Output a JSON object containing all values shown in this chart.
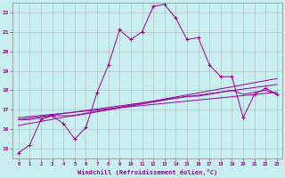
{
  "xlabel": "Windchill (Refroidissement éolien,°C)",
  "background_color": "#c8eef0",
  "grid_color": "#aaaaaa",
  "line_color": "#990099",
  "xlim": [
    -0.5,
    23.5
  ],
  "ylim": [
    14.5,
    22.5
  ],
  "ytick_values": [
    15,
    16,
    17,
    18,
    19,
    20,
    21,
    22
  ],
  "series1_x": [
    0,
    1,
    2,
    3,
    4,
    5,
    6,
    7,
    8,
    9,
    10,
    11,
    12,
    13,
    14,
    15,
    16,
    17,
    18,
    19,
    20,
    21,
    22,
    23
  ],
  "series1_y": [
    14.8,
    15.2,
    16.5,
    16.7,
    16.3,
    15.5,
    16.1,
    17.9,
    19.3,
    21.1,
    20.6,
    21.0,
    22.3,
    22.4,
    21.7,
    20.6,
    20.7,
    19.3,
    18.7,
    18.7,
    16.6,
    17.8,
    18.1,
    17.8
  ],
  "series2_x": [
    0,
    1,
    2,
    3,
    4,
    5,
    6,
    7,
    8,
    9,
    10,
    11,
    12,
    13,
    14,
    15,
    16,
    17,
    18,
    19,
    20,
    21,
    22,
    23
  ],
  "series2_y": [
    16.5,
    16.5,
    16.6,
    16.7,
    16.7,
    16.7,
    16.8,
    16.9,
    17.0,
    17.1,
    17.2,
    17.3,
    17.4,
    17.5,
    17.6,
    17.7,
    17.7,
    17.8,
    17.9,
    18.0,
    17.8,
    17.9,
    18.0,
    17.8
  ],
  "series3_x": [
    0,
    23
  ],
  "series3_y": [
    16.2,
    18.6
  ],
  "series4_x": [
    0,
    23
  ],
  "series4_y": [
    16.5,
    18.3
  ],
  "series5_x": [
    0,
    23
  ],
  "series5_y": [
    16.6,
    17.9
  ]
}
